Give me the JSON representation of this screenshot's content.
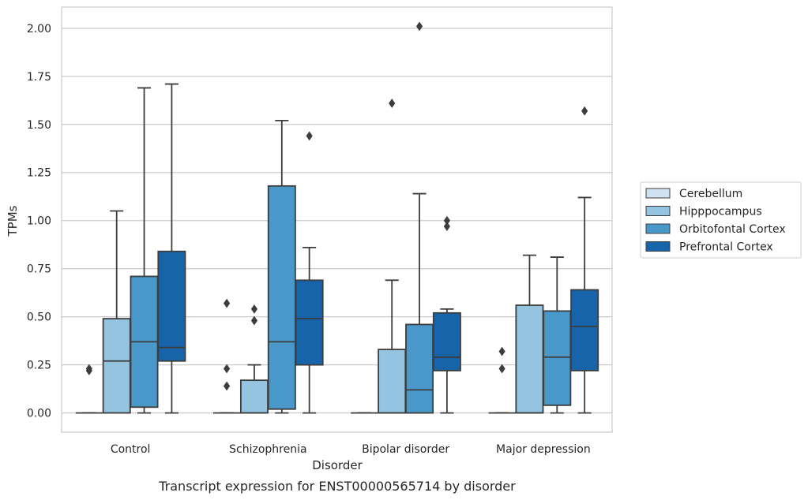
{
  "caption": "Transcript expression for ENST00000565714 by disorder",
  "chart_data": {
    "type": "box",
    "title": "",
    "xlabel": "Disorder",
    "ylabel": "TPMs",
    "ylim": [
      -0.1,
      2.11
    ],
    "yticks": [
      0,
      0.25,
      0.5,
      0.75,
      1.0,
      1.25,
      1.5,
      1.75,
      2.0
    ],
    "ytick_labels": [
      "0.00",
      "0.25",
      "0.50",
      "0.75",
      "1.00",
      "1.25",
      "1.50",
      "1.75",
      "2.00"
    ],
    "grid": "horizontal",
    "legend_position": "outside-right",
    "categories": [
      "Control",
      "Schizophrenia",
      "Bipolar disorder",
      "Major depression"
    ],
    "series": [
      {
        "name": "Cerebellum",
        "color": "#d0e1f2",
        "boxes": [
          {
            "q1": 0,
            "median": 0,
            "q3": 0,
            "whisker_low": 0,
            "whisker_high": 0,
            "outliers": [
              0.22,
              0.23
            ]
          },
          {
            "q1": 0,
            "median": 0,
            "q3": 0,
            "whisker_low": 0,
            "whisker_high": 0,
            "outliers": [
              0.14,
              0.23,
              0.57
            ]
          },
          {
            "q1": 0,
            "median": 0,
            "q3": 0,
            "whisker_low": 0,
            "whisker_high": 0,
            "outliers": []
          },
          {
            "q1": 0,
            "median": 0,
            "q3": 0,
            "whisker_low": 0,
            "whisker_high": 0,
            "outliers": [
              0.23,
              0.32
            ]
          }
        ]
      },
      {
        "name": "Hipppocampus",
        "color": "#94c4df",
        "boxes": [
          {
            "q1": 0,
            "median": 0.27,
            "q3": 0.49,
            "whisker_low": 0,
            "whisker_high": 1.05,
            "outliers": []
          },
          {
            "q1": 0,
            "median": 0,
            "q3": 0.17,
            "whisker_low": 0,
            "whisker_high": 0.25,
            "outliers": [
              0.48,
              0.54
            ]
          },
          {
            "q1": 0,
            "median": 0,
            "q3": 0.33,
            "whisker_low": 0,
            "whisker_high": 0.69,
            "outliers": [
              1.61
            ]
          },
          {
            "q1": 0,
            "median": 0,
            "q3": 0.56,
            "whisker_low": 0,
            "whisker_high": 0.82,
            "outliers": []
          }
        ]
      },
      {
        "name": "Orbitofontal Cortex",
        "color": "#4a98c9",
        "boxes": [
          {
            "q1": 0.03,
            "median": 0.37,
            "q3": 0.71,
            "whisker_low": 0,
            "whisker_high": 1.69,
            "outliers": []
          },
          {
            "q1": 0.02,
            "median": 0.37,
            "q3": 1.18,
            "whisker_low": 0,
            "whisker_high": 1.52,
            "outliers": []
          },
          {
            "q1": 0,
            "median": 0.12,
            "q3": 0.46,
            "whisker_low": 0,
            "whisker_high": 1.14,
            "outliers": [
              2.01
            ]
          },
          {
            "q1": 0.04,
            "median": 0.29,
            "q3": 0.53,
            "whisker_low": 0,
            "whisker_high": 0.81,
            "outliers": []
          }
        ]
      },
      {
        "name": "Prefrontal Cortex",
        "color": "#1764ab",
        "boxes": [
          {
            "q1": 0.27,
            "median": 0.34,
            "q3": 0.84,
            "whisker_low": 0,
            "whisker_high": 1.71,
            "outliers": []
          },
          {
            "q1": 0.25,
            "median": 0.49,
            "q3": 0.69,
            "whisker_low": 0,
            "whisker_high": 0.86,
            "outliers": [
              1.44
            ]
          },
          {
            "q1": 0.22,
            "median": 0.29,
            "q3": 0.52,
            "whisker_low": 0,
            "whisker_high": 0.54,
            "outliers": [
              0.97,
              1.0
            ]
          },
          {
            "q1": 0.22,
            "median": 0.45,
            "q3": 0.64,
            "whisker_low": 0,
            "whisker_high": 1.12,
            "outliers": [
              1.57
            ]
          }
        ]
      }
    ]
  }
}
